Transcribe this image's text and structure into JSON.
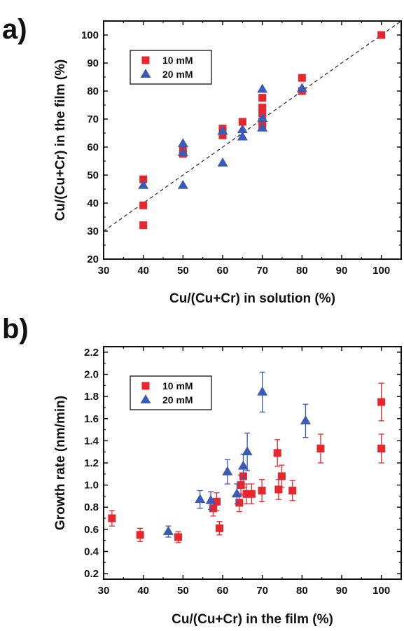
{
  "chart_data": [
    {
      "type": "scatter",
      "panel_label": "a)",
      "xlabel": "Cu/(Cu+Cr) in solution (%)",
      "ylabel": "Cu/(Cu+Cr) in the film (%)",
      "xlim": [
        30,
        105
      ],
      "ylim": [
        20,
        105
      ],
      "xticks": [
        30,
        40,
        50,
        60,
        70,
        80,
        90,
        100
      ],
      "yticks": [
        20,
        30,
        40,
        50,
        60,
        70,
        80,
        90,
        100
      ],
      "legend_position": "top-left",
      "reference_line": {
        "style": "dashed",
        "color": "#333333",
        "points": [
          [
            30,
            30
          ],
          [
            105,
            105
          ]
        ]
      },
      "series": [
        {
          "name": "10 mM",
          "marker": "square",
          "color": "#e8262b",
          "points": [
            [
              40,
              48.5
            ],
            [
              40,
              39.2
            ],
            [
              40,
              32.1
            ],
            [
              50,
              58.8
            ],
            [
              50,
              57.6
            ],
            [
              60,
              66.6
            ],
            [
              60,
              64.2
            ],
            [
              65,
              69.0
            ],
            [
              70,
              77.6
            ],
            [
              70,
              74.1
            ],
            [
              70,
              72.1
            ],
            [
              70,
              69.2
            ],
            [
              70,
              67.3
            ],
            [
              80,
              84.7
            ],
            [
              80,
              80.0
            ],
            [
              100,
              100.0
            ]
          ]
        },
        {
          "name": "20 mM",
          "marker": "triangle",
          "color": "#3b5bb5",
          "points": [
            [
              40,
              46.3
            ],
            [
              50,
              61.2
            ],
            [
              50,
              58.0
            ],
            [
              50,
              46.3
            ],
            [
              60,
              65.6
            ],
            [
              60,
              54.3
            ],
            [
              65,
              66.2
            ],
            [
              65,
              63.6
            ],
            [
              70,
              80.6
            ],
            [
              70,
              70.2
            ],
            [
              70,
              66.8
            ],
            [
              80,
              80.9
            ]
          ]
        }
      ]
    },
    {
      "type": "scatter",
      "panel_label": "b)",
      "xlabel": "Cu/(Cu+Cr) in the film (%)",
      "ylabel": "Growth rate (nm/min)",
      "xlim": [
        30,
        105
      ],
      "ylim": [
        0.15,
        2.25
      ],
      "xticks": [
        30,
        40,
        50,
        60,
        70,
        80,
        90,
        100
      ],
      "yticks": [
        0.2,
        0.4,
        0.6,
        0.8,
        1.0,
        1.2,
        1.4,
        1.6,
        1.8,
        2.0,
        2.2
      ],
      "legend_position": "top-left",
      "series": [
        {
          "name": "10 mM",
          "marker": "square",
          "color": "#e8262b",
          "points": [
            {
              "x": 32.1,
              "y": 0.7,
              "err": 0.07
            },
            {
              "x": 39.2,
              "y": 0.55,
              "err": 0.06
            },
            {
              "x": 48.8,
              "y": 0.53,
              "err": 0.05
            },
            {
              "x": 57.6,
              "y": 0.79,
              "err": 0.07
            },
            {
              "x": 58.5,
              "y": 0.85,
              "err": 0.08
            },
            {
              "x": 59.2,
              "y": 0.61,
              "err": 0.06
            },
            {
              "x": 64.2,
              "y": 0.84,
              "err": 0.08
            },
            {
              "x": 64.6,
              "y": 1.0,
              "err": 0.09
            },
            {
              "x": 65.2,
              "y": 1.08,
              "err": 0.1
            },
            {
              "x": 66.0,
              "y": 0.92,
              "err": 0.09
            },
            {
              "x": 67.3,
              "y": 0.92,
              "err": 0.09
            },
            {
              "x": 69.9,
              "y": 0.95,
              "err": 0.1
            },
            {
              "x": 73.8,
              "y": 1.29,
              "err": 0.12
            },
            {
              "x": 74.1,
              "y": 0.96,
              "err": 0.09
            },
            {
              "x": 74.9,
              "y": 1.08,
              "err": 0.1
            },
            {
              "x": 77.6,
              "y": 0.95,
              "err": 0.09
            },
            {
              "x": 84.7,
              "y": 1.33,
              "err": 0.13
            },
            {
              "x": 100.0,
              "y": 1.75,
              "err": 0.17
            },
            {
              "x": 100.0,
              "y": 1.33,
              "err": 0.13
            }
          ]
        },
        {
          "name": "20 mM",
          "marker": "triangle",
          "color": "#3b5bb5",
          "points": [
            {
              "x": 46.3,
              "y": 0.58,
              "err": 0.05
            },
            {
              "x": 54.3,
              "y": 0.87,
              "err": 0.08
            },
            {
              "x": 57.0,
              "y": 0.86,
              "err": 0.08
            },
            {
              "x": 61.2,
              "y": 1.12,
              "err": 0.11
            },
            {
              "x": 63.6,
              "y": 0.92,
              "err": 0.09
            },
            {
              "x": 65.2,
              "y": 1.17,
              "err": 0.11
            },
            {
              "x": 66.2,
              "y": 1.3,
              "err": 0.17
            },
            {
              "x": 70.0,
              "y": 1.84,
              "err": 0.18
            },
            {
              "x": 80.9,
              "y": 1.58,
              "err": 0.15
            }
          ]
        }
      ]
    }
  ]
}
